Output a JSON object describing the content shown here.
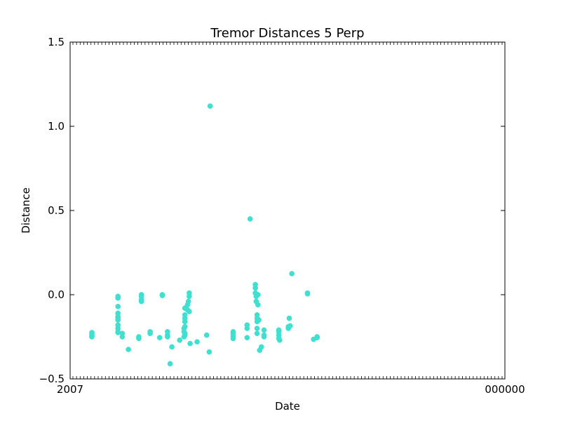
{
  "chart_data": {
    "type": "scatter",
    "title": "Tremor Distances 5 Perp",
    "xlabel": "Date",
    "ylabel": "Distance",
    "ylim": [
      -0.5,
      1.5
    ],
    "yticks": [
      "−0.5",
      "0.0",
      "0.5",
      "1.0",
      "1.5"
    ],
    "ytick_values": [
      -0.5,
      0.0,
      0.5,
      1.0,
      1.5
    ],
    "x_tick_count": 120,
    "x_tick_labels_left": "2007",
    "x_tick_labels_right": "000000",
    "point_color": "#40e0d0",
    "grid": false,
    "series": [
      {
        "points": [
          [
            0.05,
            -0.225
          ],
          [
            0.05,
            -0.235
          ],
          [
            0.05,
            -0.245
          ],
          [
            0.05,
            -0.25
          ],
          [
            0.11,
            -0.02
          ],
          [
            0.11,
            -0.01
          ],
          [
            0.11,
            -0.07
          ],
          [
            0.11,
            -0.11
          ],
          [
            0.11,
            -0.13
          ],
          [
            0.11,
            -0.14
          ],
          [
            0.11,
            -0.15
          ],
          [
            0.11,
            -0.18
          ],
          [
            0.11,
            -0.2
          ],
          [
            0.11,
            -0.22
          ],
          [
            0.11,
            -0.225
          ],
          [
            0.12,
            -0.23
          ],
          [
            0.12,
            -0.25
          ],
          [
            0.134,
            -0.325
          ],
          [
            0.158,
            -0.25
          ],
          [
            0.158,
            -0.26
          ],
          [
            0.164,
            0.0
          ],
          [
            0.164,
            -0.01
          ],
          [
            0.164,
            -0.03
          ],
          [
            0.164,
            -0.04
          ],
          [
            0.184,
            -0.22
          ],
          [
            0.184,
            -0.23
          ],
          [
            0.206,
            -0.255
          ],
          [
            0.212,
            0.0
          ],
          [
            0.212,
            -0.005
          ],
          [
            0.224,
            -0.22
          ],
          [
            0.224,
            -0.24
          ],
          [
            0.224,
            -0.25
          ],
          [
            0.23,
            -0.41
          ],
          [
            0.234,
            -0.31
          ],
          [
            0.252,
            -0.27
          ],
          [
            0.262,
            -0.2
          ],
          [
            0.262,
            -0.22
          ],
          [
            0.262,
            -0.25
          ],
          [
            0.264,
            -0.08
          ],
          [
            0.264,
            -0.12
          ],
          [
            0.264,
            -0.14
          ],
          [
            0.264,
            -0.16
          ],
          [
            0.264,
            -0.19
          ],
          [
            0.264,
            -0.23
          ],
          [
            0.264,
            -0.24
          ],
          [
            0.27,
            -0.09
          ],
          [
            0.27,
            -0.06
          ],
          [
            0.272,
            -0.04
          ],
          [
            0.274,
            -0.01
          ],
          [
            0.274,
            0.01
          ],
          [
            0.274,
            -0.1
          ],
          [
            0.276,
            -0.29
          ],
          [
            0.292,
            -0.28
          ],
          [
            0.314,
            -0.24
          ],
          [
            0.32,
            -0.34
          ],
          [
            0.322,
            1.12
          ],
          [
            0.375,
            -0.22
          ],
          [
            0.375,
            -0.23
          ],
          [
            0.375,
            -0.245
          ],
          [
            0.375,
            -0.26
          ],
          [
            0.407,
            -0.18
          ],
          [
            0.407,
            -0.2
          ],
          [
            0.407,
            -0.255
          ],
          [
            0.414,
            0.45
          ],
          [
            0.426,
            0.06
          ],
          [
            0.426,
            0.04
          ],
          [
            0.426,
            0.01
          ],
          [
            0.428,
            -0.01
          ],
          [
            0.428,
            -0.04
          ],
          [
            0.43,
            -0.12
          ],
          [
            0.43,
            -0.14
          ],
          [
            0.43,
            -0.16
          ],
          [
            0.43,
            -0.2
          ],
          [
            0.43,
            -0.23
          ],
          [
            0.432,
            0.0
          ],
          [
            0.432,
            -0.06
          ],
          [
            0.434,
            -0.15
          ],
          [
            0.436,
            -0.33
          ],
          [
            0.44,
            -0.31
          ],
          [
            0.446,
            -0.21
          ],
          [
            0.446,
            -0.24
          ],
          [
            0.446,
            -0.25
          ],
          [
            0.48,
            -0.21
          ],
          [
            0.48,
            -0.22
          ],
          [
            0.48,
            -0.24
          ],
          [
            0.48,
            -0.26
          ],
          [
            0.482,
            -0.27
          ],
          [
            0.502,
            -0.19
          ],
          [
            0.502,
            -0.2
          ],
          [
            0.504,
            -0.14
          ],
          [
            0.506,
            -0.185
          ],
          [
            0.51,
            0.125
          ],
          [
            0.546,
            0.01
          ],
          [
            0.546,
            0.005
          ],
          [
            0.56,
            -0.265
          ],
          [
            0.568,
            -0.25
          ],
          [
            0.568,
            -0.255
          ]
        ]
      }
    ]
  }
}
